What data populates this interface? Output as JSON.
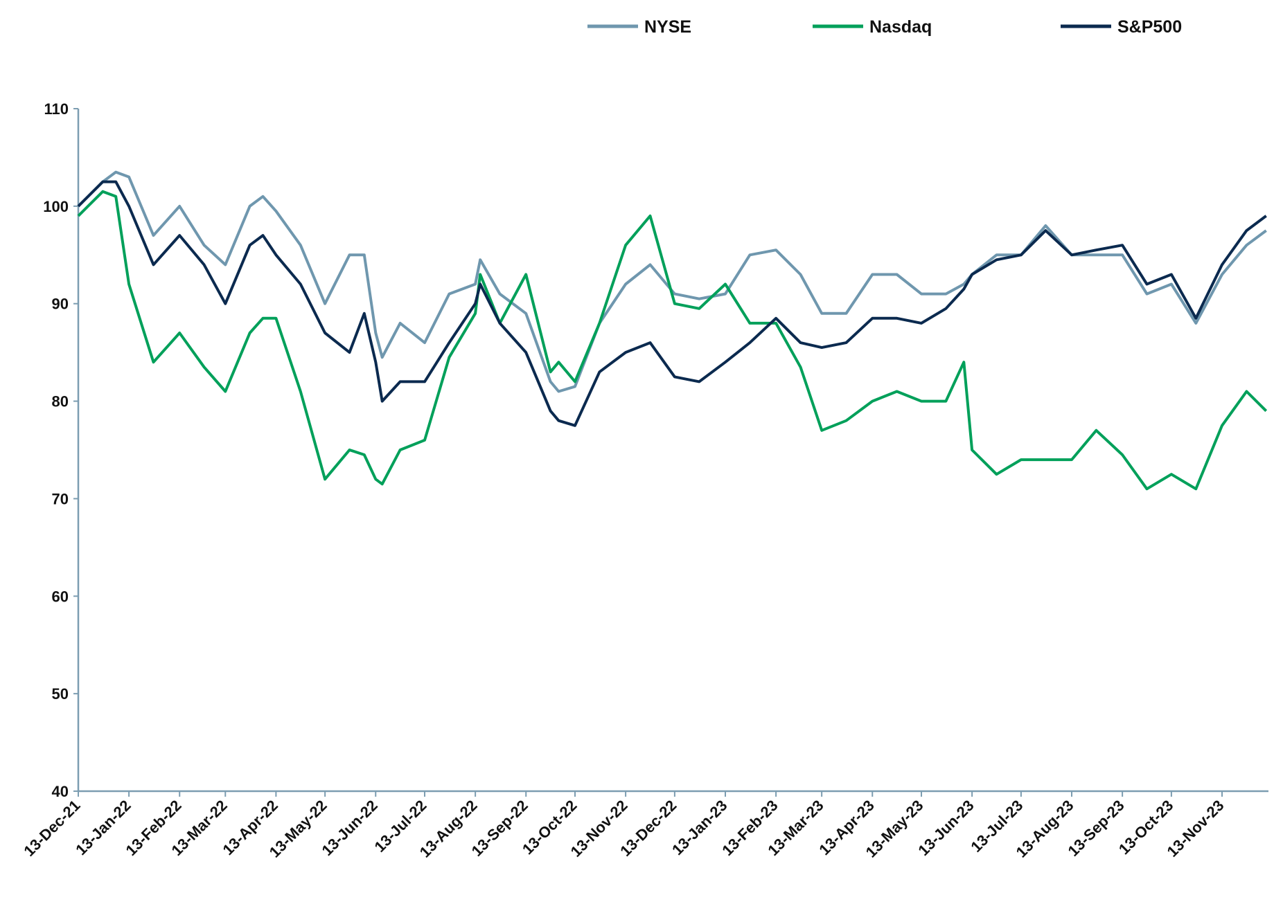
{
  "chart_data": {
    "type": "line",
    "title": "",
    "xlabel": "",
    "ylabel": "",
    "ylim": [
      40,
      110
    ],
    "yticks": [
      "40",
      "50",
      "60",
      "70",
      "80",
      "90",
      "100",
      "110"
    ],
    "xticks": [
      "13-Dec-21",
      "13-Jan-22",
      "13-Feb-22",
      "13-Mar-22",
      "13-Apr-22",
      "13-May-22",
      "13-Jun-22",
      "13-Jul-22",
      "13-Aug-22",
      "13-Sep-22",
      "13-Oct-22",
      "13-Nov-22",
      "13-Dec-22",
      "13-Jan-23",
      "13-Feb-23",
      "13-Mar-23",
      "13-Apr-23",
      "13-May-23",
      "13-Jun-23",
      "13-Jul-23",
      "13-Aug-23",
      "13-Sep-23",
      "13-Oct-23",
      "13-Nov-23"
    ],
    "xtick_dates": [
      "2021-12-13",
      "2022-01-13",
      "2022-02-13",
      "2022-03-13",
      "2022-04-13",
      "2022-05-13",
      "2022-06-13",
      "2022-07-13",
      "2022-08-13",
      "2022-09-13",
      "2022-10-13",
      "2022-11-13",
      "2022-12-13",
      "2023-01-13",
      "2023-02-13",
      "2023-03-13",
      "2023-04-13",
      "2023-05-13",
      "2023-06-13",
      "2023-07-13",
      "2023-08-13",
      "2023-09-13",
      "2023-10-13",
      "2023-11-13"
    ],
    "grid": false,
    "legend_position": "top",
    "x": [
      "2021-12-13",
      "2021-12-28",
      "2022-01-05",
      "2022-01-13",
      "2022-01-28",
      "2022-02-13",
      "2022-02-28",
      "2022-03-13",
      "2022-03-28",
      "2022-04-05",
      "2022-04-13",
      "2022-04-28",
      "2022-05-13",
      "2022-05-28",
      "2022-06-06",
      "2022-06-13",
      "2022-06-17",
      "2022-06-28",
      "2022-07-13",
      "2022-07-28",
      "2022-08-13",
      "2022-08-16",
      "2022-08-28",
      "2022-09-13",
      "2022-09-28",
      "2022-10-03",
      "2022-10-13",
      "2022-10-28",
      "2022-11-13",
      "2022-11-28",
      "2022-12-13",
      "2022-12-28",
      "2023-01-13",
      "2023-01-28",
      "2023-02-13",
      "2023-02-28",
      "2023-03-13",
      "2023-03-28",
      "2023-04-13",
      "2023-04-28",
      "2023-05-13",
      "2023-05-28",
      "2023-06-08",
      "2023-06-13",
      "2023-06-28",
      "2023-07-13",
      "2023-07-28",
      "2023-08-13",
      "2023-08-28",
      "2023-09-13",
      "2023-09-28",
      "2023-10-13",
      "2023-10-28",
      "2023-11-13",
      "2023-11-28",
      "2023-12-10"
    ],
    "series": [
      {
        "name": "NYSE",
        "color": "#6f97ae",
        "values": [
          100,
          102.5,
          103.5,
          103,
          97,
          100,
          96,
          94,
          100,
          101,
          99.5,
          96,
          90,
          95,
          95,
          87,
          84.5,
          88,
          86,
          91,
          92,
          94.5,
          91,
          89,
          82,
          81,
          81.5,
          88,
          92,
          94,
          91,
          90.5,
          91,
          95,
          95.5,
          93,
          89,
          89,
          93,
          93,
          91,
          91,
          92,
          93,
          95,
          95,
          98,
          95,
          95,
          95,
          91,
          92,
          88,
          93,
          96,
          97.5
        ]
      },
      {
        "name": "Nasdaq",
        "color": "#00a05a",
        "values": [
          99,
          101.5,
          101,
          92,
          84,
          87,
          83.5,
          81,
          87,
          88.5,
          88.5,
          81,
          72,
          75,
          74.5,
          72,
          71.5,
          75,
          76,
          84.5,
          89,
          93,
          88,
          93,
          83,
          84,
          82,
          88,
          96,
          99,
          90,
          89.5,
          92,
          88,
          88,
          83.5,
          77,
          78,
          80,
          81,
          80,
          80,
          84,
          75,
          72.5,
          74,
          74,
          74,
          77,
          74.5,
          71,
          72.5,
          71,
          77.5,
          81,
          79
        ]
      },
      {
        "name": "S&P500",
        "color": "#0b2a4f",
        "values": [
          100,
          102.5,
          102.5,
          100,
          94,
          97,
          94,
          90,
          96,
          97,
          95,
          92,
          87,
          85,
          89,
          84,
          80,
          82,
          82,
          86,
          90,
          92,
          88,
          85,
          79,
          78,
          77.5,
          83,
          85,
          86,
          82.5,
          82,
          84,
          86,
          88.5,
          86,
          85.5,
          86,
          88.5,
          88.5,
          88,
          89.5,
          91.5,
          93,
          94.5,
          95,
          97.5,
          95,
          95.5,
          96,
          92,
          93,
          88.5,
          94,
          97.5,
          99
        ]
      }
    ]
  }
}
